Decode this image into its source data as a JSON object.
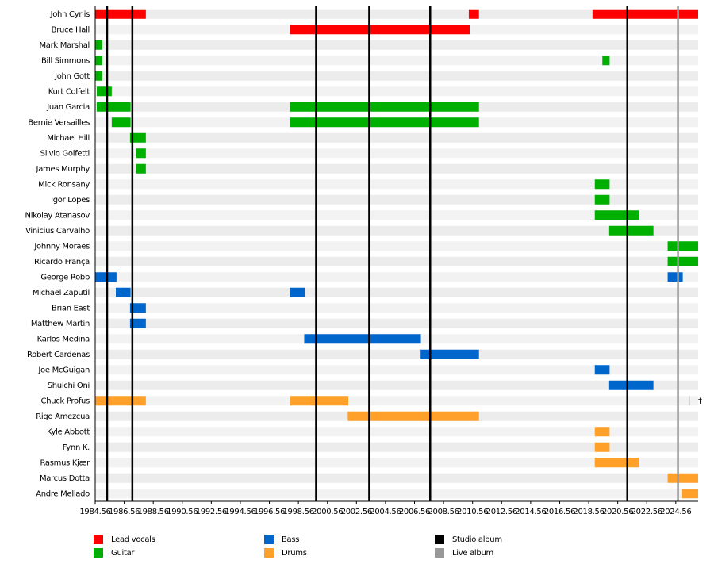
{
  "chart_data": {
    "type": "timeline",
    "xlim": [
      1984.56,
      2026.1
    ],
    "xticks": [
      1984.56,
      1986.56,
      1988.56,
      1990.56,
      1992.56,
      1994.56,
      1996.56,
      1998.56,
      2000.56,
      2002.56,
      2004.56,
      2006.56,
      2008.56,
      2010.56,
      2012.56,
      2014.56,
      2016.56,
      2018.56,
      2020.56,
      2022.56,
      2024.56
    ],
    "roles": [
      {
        "name": "Lead vocals",
        "color": "#ff0000"
      },
      {
        "name": "Guitar",
        "color": "#00b000"
      },
      {
        "name": "Bass",
        "color": "#0066cc"
      },
      {
        "name": "Drums",
        "color": "#ffa02a"
      }
    ],
    "events": [
      {
        "name": "Studio album",
        "color": "#000000",
        "values": [
          1985.38,
          1987.12,
          1999.78,
          2003.44,
          2007.64,
          2021.22
        ]
      },
      {
        "name": "Live album",
        "color": "#999999",
        "values": [
          2024.71
        ]
      }
    ],
    "members": [
      {
        "name": "John Cyriis",
        "role": "Lead vocals",
        "periods": [
          [
            1984.56,
            1988.05
          ],
          [
            2010.3,
            2011.0
          ],
          [
            2018.82,
            2026.1
          ]
        ]
      },
      {
        "name": "Bruce Hall",
        "role": "Lead vocals",
        "periods": [
          [
            1997.98,
            2010.36
          ]
        ]
      },
      {
        "name": "Mark Marshal",
        "role": "Guitar",
        "periods": [
          [
            1984.56,
            1985.05
          ]
        ]
      },
      {
        "name": "Bill Simmons",
        "role": "Guitar",
        "periods": [
          [
            1984.56,
            1985.05
          ],
          [
            2019.5,
            2020.0
          ]
        ]
      },
      {
        "name": "John Gott",
        "role": "Guitar",
        "periods": [
          [
            1984.56,
            1985.05
          ]
        ]
      },
      {
        "name": "Kurt Colfelt",
        "role": "Guitar",
        "periods": [
          [
            1984.67,
            1985.7
          ]
        ]
      },
      {
        "name": "Juan Garcia",
        "role": "Guitar",
        "periods": [
          [
            1984.67,
            1987.0
          ],
          [
            1997.98,
            2011.0
          ]
        ]
      },
      {
        "name": "Bernie Versailles",
        "role": "Guitar",
        "periods": [
          [
            1985.7,
            1987.0
          ],
          [
            1997.98,
            2011.0
          ]
        ]
      },
      {
        "name": "Michael Hill",
        "role": "Guitar",
        "periods": [
          [
            1986.96,
            1988.05
          ]
        ]
      },
      {
        "name": "Silvio Golfetti",
        "role": "Guitar",
        "periods": [
          [
            1987.4,
            1988.05
          ]
        ]
      },
      {
        "name": "James Murphy",
        "role": "Guitar",
        "periods": [
          [
            1987.4,
            1988.05
          ]
        ]
      },
      {
        "name": "Mick Ronsany",
        "role": "Guitar",
        "periods": [
          [
            2018.98,
            2020.0
          ]
        ]
      },
      {
        "name": "Igor Lopes",
        "role": "Guitar",
        "periods": [
          [
            2018.98,
            2020.0
          ]
        ]
      },
      {
        "name": "Nikolay Atanasov",
        "role": "Guitar",
        "periods": [
          [
            2018.98,
            2022.04
          ]
        ]
      },
      {
        "name": "Vinicius Carvalho",
        "role": "Guitar",
        "periods": [
          [
            2019.97,
            2023.02
          ]
        ]
      },
      {
        "name": "Johnny Moraes",
        "role": "Guitar",
        "periods": [
          [
            2024.0,
            2026.1
          ]
        ]
      },
      {
        "name": "Ricardo França",
        "role": "Guitar",
        "periods": [
          [
            2024.0,
            2026.1
          ]
        ]
      },
      {
        "name": "George Robb",
        "role": "Bass",
        "periods": [
          [
            1984.56,
            1986.03
          ],
          [
            2024.0,
            2025.04
          ]
        ]
      },
      {
        "name": "Michael Zaputil",
        "role": "Bass",
        "periods": [
          [
            1985.98,
            1987.0
          ],
          [
            1997.98,
            1999.0
          ]
        ]
      },
      {
        "name": "Brian East",
        "role": "Bass",
        "periods": [
          [
            1986.96,
            1988.05
          ]
        ]
      },
      {
        "name": "Matthew Martin",
        "role": "Bass",
        "periods": [
          [
            1986.96,
            1988.05
          ]
        ]
      },
      {
        "name": "Karlos Medina",
        "role": "Bass",
        "periods": [
          [
            1998.96,
            2007.0
          ]
        ]
      },
      {
        "name": "Robert Cardenas",
        "role": "Bass",
        "periods": [
          [
            2006.98,
            2011.0
          ]
        ]
      },
      {
        "name": "Joe McGuigan",
        "role": "Bass",
        "periods": [
          [
            2018.98,
            2020.0
          ]
        ]
      },
      {
        "name": "Shuichi Oni",
        "role": "Bass",
        "periods": [
          [
            2019.97,
            2023.02
          ]
        ]
      },
      {
        "name": "Chuck Profus",
        "role": "Drums",
        "periods": [
          [
            1984.56,
            1988.05
          ],
          [
            1997.98,
            2002.0
          ]
        ],
        "note": "†"
      },
      {
        "name": "Rigo Amezcua",
        "role": "Drums",
        "periods": [
          [
            2001.96,
            2011.0
          ]
        ]
      },
      {
        "name": "Kyle Abbott",
        "role": "Drums",
        "periods": [
          [
            2018.98,
            2020.0
          ]
        ]
      },
      {
        "name": "Fynn K.",
        "role": "Drums",
        "periods": [
          [
            2018.98,
            2020.0
          ]
        ]
      },
      {
        "name": "Rasmus Kjær",
        "role": "Drums",
        "periods": [
          [
            2018.98,
            2022.04
          ]
        ]
      },
      {
        "name": "Marcus Dotta",
        "role": "Drums",
        "periods": [
          [
            2024.0,
            2026.1
          ]
        ]
      },
      {
        "name": "Andre Mellado",
        "role": "Drums",
        "periods": [
          [
            2025.0,
            2026.1
          ]
        ]
      }
    ]
  }
}
